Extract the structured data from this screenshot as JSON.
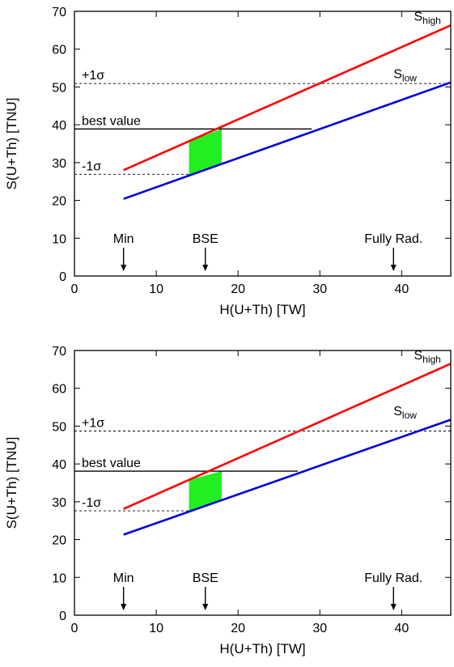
{
  "chart_data": [
    {
      "type": "line",
      "xlabel": "H(U+Th) [TW]",
      "ylabel": "S(U+Th) [TNU]",
      "xlim": [
        0,
        46
      ],
      "ylim": [
        0,
        70
      ],
      "xticks": [
        0,
        10,
        20,
        30,
        40
      ],
      "yticks": [
        0,
        10,
        20,
        30,
        40,
        50,
        60,
        70
      ],
      "grid": false,
      "series": [
        {
          "name": "S_high",
          "label_main": "S",
          "label_sub": "high",
          "color": "#ff0000",
          "x": [
            6,
            46
          ],
          "y": [
            28.0,
            66.3
          ]
        },
        {
          "name": "S_low",
          "label_main": "S",
          "label_sub": "low",
          "color": "#0000dd",
          "x": [
            6,
            46
          ],
          "y": [
            20.4,
            51.2
          ]
        }
      ],
      "hlines": [
        {
          "label": "+1σ",
          "y": 50.9,
          "style": "dashed"
        },
        {
          "label": "best value",
          "y": 38.9,
          "style": "solid",
          "x_end": 29.0
        },
        {
          "label": "-1σ",
          "y": 26.9,
          "style": "dashed",
          "x_end": 14.0
        }
      ],
      "shaded_band": {
        "color": "#22ee22",
        "x_range": [
          14,
          18
        ]
      },
      "markers": [
        {
          "label": "Min",
          "x": 6
        },
        {
          "label": "BSE",
          "x": 16
        },
        {
          "label": "Fully Rad.",
          "x": 39
        }
      ]
    },
    {
      "type": "line",
      "xlabel": "H(U+Th) [TW]",
      "ylabel": "S(U+Th) [TNU]",
      "xlim": [
        0,
        46
      ],
      "ylim": [
        0,
        70
      ],
      "xticks": [
        0,
        10,
        20,
        30,
        40
      ],
      "yticks": [
        0,
        10,
        20,
        30,
        40,
        50,
        60,
        70
      ],
      "grid": false,
      "series": [
        {
          "name": "S_high",
          "label_main": "S",
          "label_sub": "high",
          "color": "#ff0000",
          "x": [
            6,
            46
          ],
          "y": [
            28.1,
            66.5
          ]
        },
        {
          "name": "S_low",
          "label_main": "S",
          "label_sub": "low",
          "color": "#0000dd",
          "x": [
            6,
            46
          ],
          "y": [
            21.3,
            51.7
          ]
        }
      ],
      "hlines": [
        {
          "label": "+1σ",
          "y": 48.7,
          "style": "dashed"
        },
        {
          "label": "best value",
          "y": 38.1,
          "style": "solid",
          "x_end": 27.3
        },
        {
          "label": "-1σ",
          "y": 27.6,
          "style": "dashed",
          "x_end": 14.0
        }
      ],
      "shaded_band": {
        "color": "#22ee22",
        "x_range": [
          14,
          18
        ]
      },
      "markers": [
        {
          "label": "Min",
          "x": 6
        },
        {
          "label": "BSE",
          "x": 16
        },
        {
          "label": "Fully Rad.",
          "x": 39
        }
      ]
    }
  ]
}
